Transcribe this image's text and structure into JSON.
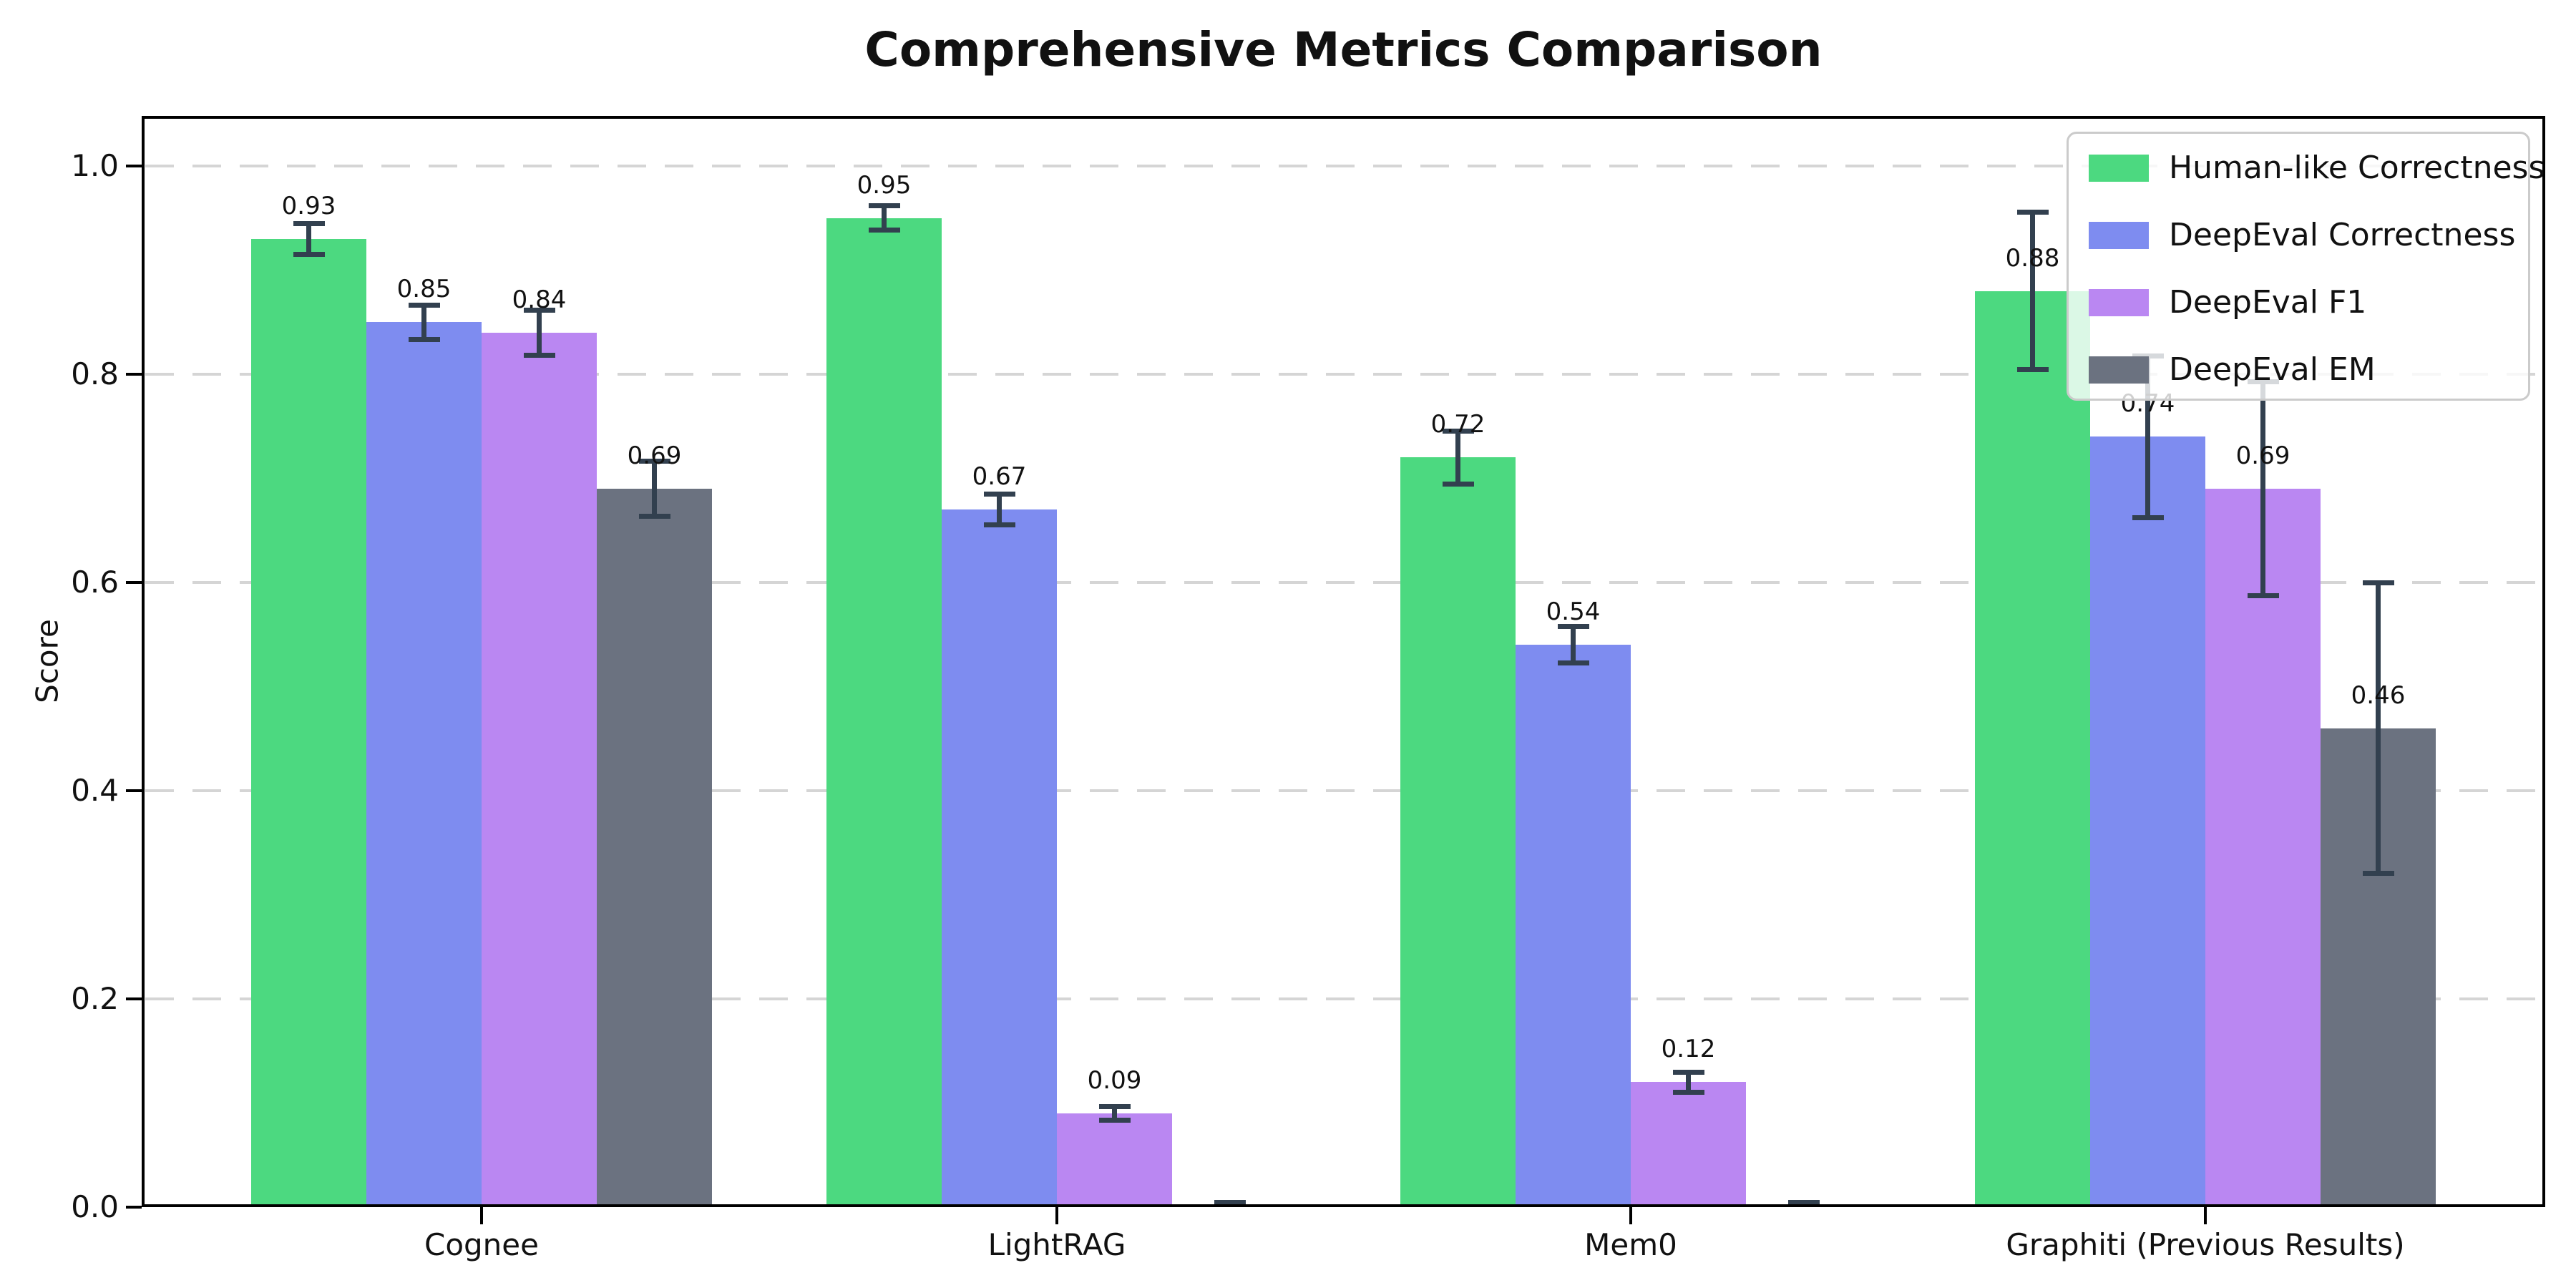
{
  "chart_data": {
    "type": "bar",
    "title": "Comprehensive Metrics Comparison",
    "ylabel": "Score",
    "xlabel": "",
    "categories": [
      "Cognee",
      "LightRAG",
      "Mem0",
      "Graphiti (Previous Results)"
    ],
    "series": [
      {
        "name": "Human-like Correctness",
        "color": "#4cd980",
        "values": [
          0.93,
          0.95,
          0.72,
          0.88
        ],
        "errors": [
          0.015,
          0.012,
          0.026,
          0.076
        ],
        "value_labels": [
          "0.93",
          "0.95",
          "0.72",
          "0.88"
        ]
      },
      {
        "name": "DeepEval Correctness",
        "color": "#7e8cf0",
        "values": [
          0.85,
          0.67,
          0.54,
          0.74
        ],
        "errors": [
          0.017,
          0.015,
          0.018,
          0.078
        ],
        "value_labels": [
          "0.85",
          "0.67",
          "0.54",
          "0.74"
        ]
      },
      {
        "name": "DeepEval F1",
        "color": "#ba87f2",
        "values": [
          0.84,
          0.09,
          0.12,
          0.69
        ],
        "errors": [
          0.022,
          0.007,
          0.01,
          0.103
        ],
        "value_labels": [
          "0.84",
          "0.09",
          "0.12",
          "0.69"
        ]
      },
      {
        "name": "DeepEval EM",
        "color": "#6b7280",
        "values": [
          0.69,
          0.0,
          0.0,
          0.46
        ],
        "errors": [
          0.027,
          0.005,
          0.005,
          0.14
        ],
        "value_labels": [
          "0.69",
          "",
          "",
          "0.46"
        ]
      }
    ],
    "yticks": [
      "0.0",
      "0.2",
      "0.4",
      "0.6",
      "0.8",
      "1.0"
    ],
    "ytick_values": [
      0.0,
      0.2,
      0.4,
      0.6,
      0.8,
      1.0
    ],
    "ylim": [
      0,
      1.048
    ],
    "grid": "horizontal-dashed",
    "gridline_color": "#d5d5d5",
    "errorbar_color": "#32404f",
    "legend_position": "upper right",
    "legend_border_color": "#cbcbcb",
    "background_color": "#ffffff"
  }
}
